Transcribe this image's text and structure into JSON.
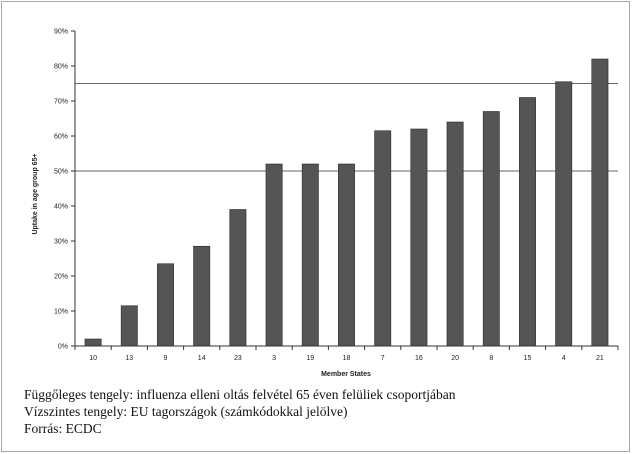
{
  "chart_data": {
    "type": "bar",
    "categories": [
      "10",
      "13",
      "9",
      "14",
      "23",
      "3",
      "19",
      "18",
      "7",
      "16",
      "20",
      "8",
      "15",
      "4",
      "21"
    ],
    "values": [
      2,
      11.5,
      23.5,
      28.5,
      39,
      52,
      52,
      52,
      61.5,
      62,
      64,
      67,
      71,
      75.5,
      82
    ],
    "xlabel": "Member States",
    "ylabel": "Uptake in age group 65+",
    "ylim": [
      0,
      90
    ],
    "yticks": [
      "0%",
      "10%",
      "20%",
      "30%",
      "40%",
      "50%",
      "60%",
      "70%",
      "80%",
      "90%"
    ],
    "reference_lines": [
      50,
      75
    ],
    "bar_color": "#555555",
    "grid": false
  },
  "caption": {
    "line1": "Függőleges tengely: influenza elleni oltás felvétel 65 éven felüliek csoportjában",
    "line2": "Vízszintes tengely: EU tagországok (számkódokkal jelölve)",
    "line3": "Forrás: ECDC"
  }
}
